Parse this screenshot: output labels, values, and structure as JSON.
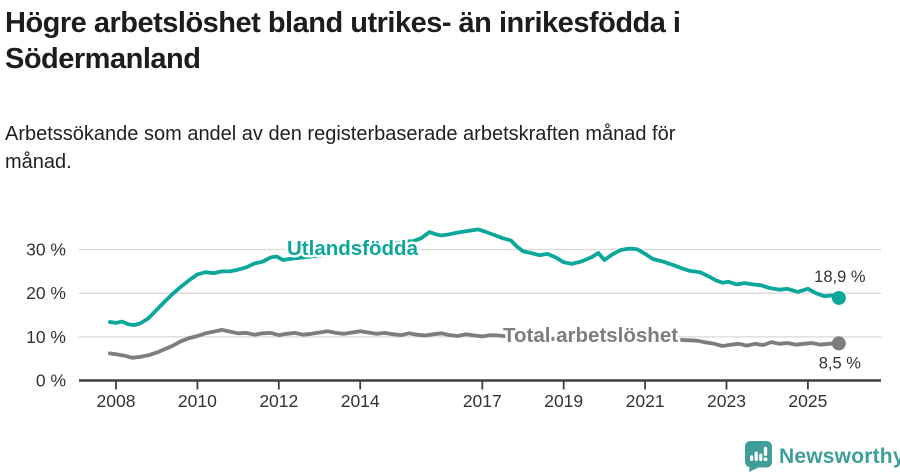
{
  "header": {
    "title_lines": [
      "Högre arbetslöshet bland utrikes- än inrikesfödda i",
      "Södermanland"
    ],
    "subtitle_lines": [
      "Arbetssökande som andel av den registerbaserade arbetskraften månad för",
      "månad."
    ]
  },
  "chart_data": {
    "type": "line",
    "title": "Högre arbetslöshet bland utrikes- än inrikesfödda i Södermanland",
    "subtitle": "Arbetssökande som andel av den registerbaserade arbetskraften månad för månad.",
    "unit": "%",
    "xlabel": "",
    "ylabel": "",
    "xlim": [
      2007.85,
      2026.0
    ],
    "ylim": [
      0,
      36
    ],
    "grid": "horizontal",
    "legend": "inline-labels",
    "x_ticks": [
      {
        "value": 2008,
        "label": "2008"
      },
      {
        "value": 2010,
        "label": "2010"
      },
      {
        "value": 2012,
        "label": "2012"
      },
      {
        "value": 2014,
        "label": "2014"
      },
      {
        "value": 2017,
        "label": "2017"
      },
      {
        "value": 2019,
        "label": "2019"
      },
      {
        "value": 2021,
        "label": "2021"
      },
      {
        "value": 2023,
        "label": "2023"
      },
      {
        "value": 2025,
        "label": "2025"
      }
    ],
    "y_ticks": [
      {
        "value": 0,
        "label": "0 %"
      },
      {
        "value": 10,
        "label": "10 %"
      },
      {
        "value": 20,
        "label": "20 %"
      },
      {
        "value": 30,
        "label": "30 %"
      }
    ],
    "series": [
      {
        "name": "Utlandsfödda",
        "color": "#0ba79b",
        "end_label": "18,9 %",
        "end_value": 18.9,
        "points": [
          [
            2007.85,
            13.4
          ],
          [
            2008.0,
            13.2
          ],
          [
            2008.15,
            13.5
          ],
          [
            2008.3,
            12.9
          ],
          [
            2008.45,
            12.7
          ],
          [
            2008.6,
            13.1
          ],
          [
            2008.8,
            14.3
          ],
          [
            2009.0,
            16.2
          ],
          [
            2009.2,
            18.1
          ],
          [
            2009.4,
            19.9
          ],
          [
            2009.6,
            21.5
          ],
          [
            2009.8,
            23.0
          ],
          [
            2010.0,
            24.3
          ],
          [
            2010.2,
            24.8
          ],
          [
            2010.4,
            24.6
          ],
          [
            2010.6,
            25.0
          ],
          [
            2010.8,
            25.0
          ],
          [
            2011.0,
            25.4
          ],
          [
            2011.2,
            25.9
          ],
          [
            2011.4,
            26.8
          ],
          [
            2011.6,
            27.2
          ],
          [
            2011.8,
            28.2
          ],
          [
            2011.95,
            28.4
          ],
          [
            2012.1,
            27.6
          ],
          [
            2012.3,
            27.9
          ],
          [
            2012.5,
            28.1
          ],
          [
            2012.8,
            28.4
          ],
          [
            2013.1,
            28.7
          ],
          [
            2013.4,
            29.0
          ],
          [
            2013.7,
            29.4
          ],
          [
            2014.0,
            29.8
          ],
          [
            2014.3,
            30.3
          ],
          [
            2014.6,
            30.8
          ],
          [
            2014.9,
            31.4
          ],
          [
            2015.1,
            31.8
          ],
          [
            2015.3,
            31.9
          ],
          [
            2015.5,
            32.6
          ],
          [
            2015.7,
            34.0
          ],
          [
            2015.85,
            33.5
          ],
          [
            2016.0,
            33.2
          ],
          [
            2016.2,
            33.5
          ],
          [
            2016.4,
            33.9
          ],
          [
            2016.6,
            34.2
          ],
          [
            2016.9,
            34.6
          ],
          [
            2017.1,
            34.0
          ],
          [
            2017.3,
            33.3
          ],
          [
            2017.5,
            32.6
          ],
          [
            2017.7,
            32.1
          ],
          [
            2017.85,
            30.7
          ],
          [
            2018.0,
            29.6
          ],
          [
            2018.2,
            29.2
          ],
          [
            2018.4,
            28.7
          ],
          [
            2018.6,
            29.0
          ],
          [
            2018.8,
            28.2
          ],
          [
            2019.0,
            27.1
          ],
          [
            2019.2,
            26.7
          ],
          [
            2019.45,
            27.3
          ],
          [
            2019.7,
            28.3
          ],
          [
            2019.85,
            29.2
          ],
          [
            2020.0,
            27.6
          ],
          [
            2020.2,
            28.9
          ],
          [
            2020.4,
            29.9
          ],
          [
            2020.6,
            30.2
          ],
          [
            2020.8,
            30.1
          ],
          [
            2021.0,
            29.0
          ],
          [
            2021.2,
            27.8
          ],
          [
            2021.45,
            27.2
          ],
          [
            2021.7,
            26.4
          ],
          [
            2021.9,
            25.7
          ],
          [
            2022.1,
            25.1
          ],
          [
            2022.35,
            24.8
          ],
          [
            2022.55,
            23.9
          ],
          [
            2022.75,
            22.9
          ],
          [
            2022.9,
            22.4
          ],
          [
            2023.05,
            22.6
          ],
          [
            2023.25,
            22.0
          ],
          [
            2023.45,
            22.3
          ],
          [
            2023.65,
            22.0
          ],
          [
            2023.85,
            21.8
          ],
          [
            2024.05,
            21.2
          ],
          [
            2024.3,
            20.8
          ],
          [
            2024.5,
            21.0
          ],
          [
            2024.75,
            20.3
          ],
          [
            2025.0,
            21.0
          ],
          [
            2025.2,
            20.0
          ],
          [
            2025.4,
            19.3
          ],
          [
            2025.6,
            19.5
          ],
          [
            2025.76,
            18.9
          ]
        ]
      },
      {
        "name": "Total arbetslöshet",
        "color": "#7d7d7d",
        "end_label": "8,5 %",
        "end_value": 8.5,
        "points": [
          [
            2007.85,
            6.2
          ],
          [
            2008.0,
            6.0
          ],
          [
            2008.2,
            5.7
          ],
          [
            2008.4,
            5.2
          ],
          [
            2008.6,
            5.4
          ],
          [
            2008.8,
            5.8
          ],
          [
            2009.0,
            6.4
          ],
          [
            2009.2,
            7.2
          ],
          [
            2009.4,
            8.0
          ],
          [
            2009.6,
            9.0
          ],
          [
            2009.8,
            9.7
          ],
          [
            2010.0,
            10.2
          ],
          [
            2010.2,
            10.8
          ],
          [
            2010.4,
            11.2
          ],
          [
            2010.6,
            11.6
          ],
          [
            2010.8,
            11.2
          ],
          [
            2011.0,
            10.8
          ],
          [
            2011.2,
            10.9
          ],
          [
            2011.4,
            10.5
          ],
          [
            2011.6,
            10.8
          ],
          [
            2011.8,
            10.9
          ],
          [
            2012.0,
            10.4
          ],
          [
            2012.2,
            10.7
          ],
          [
            2012.4,
            10.9
          ],
          [
            2012.6,
            10.5
          ],
          [
            2012.8,
            10.7
          ],
          [
            2013.0,
            11.0
          ],
          [
            2013.2,
            11.3
          ],
          [
            2013.4,
            10.9
          ],
          [
            2013.6,
            10.7
          ],
          [
            2013.8,
            11.0
          ],
          [
            2014.0,
            11.3
          ],
          [
            2014.2,
            11.0
          ],
          [
            2014.4,
            10.7
          ],
          [
            2014.6,
            10.9
          ],
          [
            2014.8,
            10.6
          ],
          [
            2015.0,
            10.4
          ],
          [
            2015.2,
            10.8
          ],
          [
            2015.4,
            10.5
          ],
          [
            2015.6,
            10.3
          ],
          [
            2015.8,
            10.6
          ],
          [
            2016.0,
            10.8
          ],
          [
            2016.2,
            10.4
          ],
          [
            2016.4,
            10.2
          ],
          [
            2016.6,
            10.6
          ],
          [
            2016.8,
            10.3
          ],
          [
            2017.0,
            10.1
          ],
          [
            2017.2,
            10.4
          ],
          [
            2017.4,
            10.3
          ],
          [
            2017.7,
            10.0
          ],
          [
            2018.0,
            9.9
          ],
          [
            2018.3,
            9.7
          ],
          [
            2018.6,
            9.6
          ],
          [
            2019.0,
            9.4
          ],
          [
            2019.4,
            9.3
          ],
          [
            2019.8,
            9.4
          ],
          [
            2020.1,
            9.7
          ],
          [
            2020.4,
            10.0
          ],
          [
            2020.7,
            9.9
          ],
          [
            2021.0,
            9.7
          ],
          [
            2021.4,
            9.5
          ],
          [
            2021.8,
            9.3
          ],
          [
            2022.1,
            9.2
          ],
          [
            2022.3,
            9.1
          ],
          [
            2022.5,
            8.7
          ],
          [
            2022.7,
            8.4
          ],
          [
            2022.9,
            7.9
          ],
          [
            2023.1,
            8.2
          ],
          [
            2023.3,
            8.4
          ],
          [
            2023.5,
            8.0
          ],
          [
            2023.7,
            8.4
          ],
          [
            2023.9,
            8.1
          ],
          [
            2024.1,
            8.8
          ],
          [
            2024.3,
            8.4
          ],
          [
            2024.5,
            8.6
          ],
          [
            2024.7,
            8.2
          ],
          [
            2024.9,
            8.4
          ],
          [
            2025.1,
            8.6
          ],
          [
            2025.3,
            8.2
          ],
          [
            2025.5,
            8.4
          ],
          [
            2025.76,
            8.5
          ]
        ]
      }
    ]
  },
  "footer": {
    "brand": "Newsworthy"
  },
  "colors": {
    "teal_line": "#0ba79b",
    "gray_line": "#7d7d7d",
    "grid": "#d9d9d9",
    "axis": "#3f3f3f",
    "tick_text": "#333333",
    "title_text": "#1d1d1b",
    "brand_teal": "#3f9e99"
  }
}
